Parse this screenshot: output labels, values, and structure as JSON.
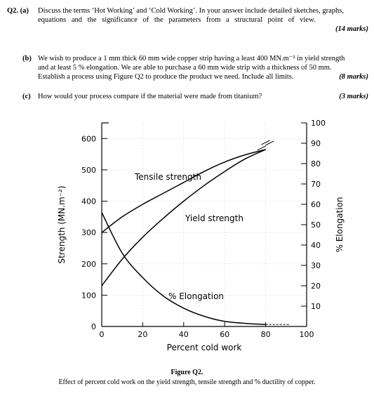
{
  "q2a": {
    "label": "Q2. (a)",
    "line1": "Discuss the terms ‘Hot Working’ and ‘Cold Working’. In your answer include detailed sketches, graphs,",
    "line2": "equations and the significance of the parameters from a structural point of view.",
    "marks": "(14 marks)"
  },
  "q2b": {
    "label": "(b)",
    "line1": "We wish to produce a 1 mm thick 60 mm wide copper strip having a least 400 MN.m⁻² in yield strength",
    "line2": "and at least 5 % elongation. We are able to purchase a 60 mm wide strip with a thickness of 50 mm.",
    "line3": "Establish a process using Figure Q2 to produce the product we need. Include all limits.",
    "marks": "(8 marks)"
  },
  "q2c": {
    "label": "(c)",
    "line1": "How would your process compare if the material were made from titanium?",
    "marks": "(3 marks)"
  },
  "figure": {
    "caption_title": "Figure Q2.",
    "caption_text": "Effect of percent cold work on the yield strength, tensile strength and % ductility of copper."
  },
  "chart_data": {
    "type": "line",
    "xlabel": "Percent cold work",
    "ylabel_left": "Strength (MN.m⁻²)",
    "ylabel_right": "% Elongation",
    "xlim": [
      0,
      100
    ],
    "ylim_left": [
      0,
      650
    ],
    "ylim_right": [
      0,
      100
    ],
    "x_ticks": [
      0,
      20,
      40,
      60,
      80,
      100
    ],
    "y_left_ticks": [
      0,
      100,
      200,
      300,
      400,
      500,
      600
    ],
    "y_right_ticks": [
      10,
      20,
      30,
      40,
      50,
      60,
      70,
      80,
      90,
      100
    ],
    "series": [
      {
        "name": "Tensile strength",
        "axis": "left",
        "x": [
          0,
          10,
          20,
          30,
          40,
          50,
          60,
          70,
          80
        ],
        "y": [
          300,
          350,
          390,
          425,
          460,
          495,
          525,
          548,
          565
        ]
      },
      {
        "name": "Yield strength",
        "axis": "left",
        "x": [
          0,
          10,
          20,
          30,
          40,
          50,
          60,
          70,
          80
        ],
        "y": [
          130,
          215,
          285,
          345,
          400,
          450,
          495,
          535,
          565
        ]
      },
      {
        "name": "% Elongation",
        "axis": "right",
        "x": [
          0,
          10,
          20,
          30,
          40,
          50,
          60,
          70,
          80
        ],
        "y": [
          56,
          36,
          24,
          15,
          9,
          5,
          2.5,
          1.5,
          1
        ]
      }
    ]
  }
}
